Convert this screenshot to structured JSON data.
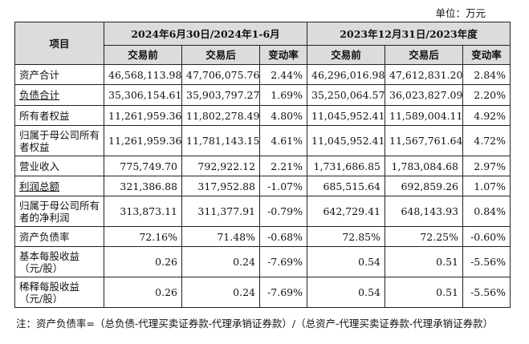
{
  "unit_label": "单位：万元",
  "header": {
    "item": "项目",
    "period1": "2024年6月30日/2024年1-6月",
    "period2": "2023年12月31日/2023年度",
    "sub": [
      "交易前",
      "交易后",
      "变动率",
      "交易前",
      "交易后",
      "变动率"
    ]
  },
  "rows": [
    {
      "name": "资产合计",
      "values": [
        "46,568,113.98",
        "47,706,075.76",
        "2.44%",
        "46,296,016.98",
        "47,612,831.20",
        "2.84%"
      ]
    },
    {
      "name": "负债合计",
      "values": [
        "35,306,154.61",
        "35,903,797.27",
        "1.69%",
        "35,250,064.57",
        "36,023,827.09",
        "2.20%"
      ]
    },
    {
      "name": "所有者权益",
      "values": [
        "11,261,959.36",
        "11,802,278.49",
        "4.80%",
        "11,045,952.41",
        "11,589,004.11",
        "4.92%"
      ]
    },
    {
      "name": "归属于母公司所有者权益",
      "values": [
        "11,261,959.36",
        "11,781,143.15",
        "4.61%",
        "11,045,952.41",
        "11,567,761.64",
        "4.72%"
      ]
    },
    {
      "name": "营业收入",
      "values": [
        "775,749.70",
        "792,922.12",
        "2.21%",
        "1,731,686.85",
        "1,783,084.68",
        "2.97%"
      ]
    },
    {
      "name": "利润总额",
      "values": [
        "321,386.88",
        "317,952.88",
        "-1.07%",
        "685,515.64",
        "692,859.26",
        "1.07%"
      ]
    },
    {
      "name": "归属于母公司所有者的净利润",
      "values": [
        "313,873.11",
        "311,377.91",
        "-0.79%",
        "642,729.41",
        "648,143.93",
        "0.84%"
      ]
    },
    {
      "name": "资产负债率",
      "values": [
        "72.16%",
        "71.48%",
        "-0.68%",
        "72.85%",
        "72.25%",
        "-0.60%"
      ]
    },
    {
      "name": "基本每股收益（元/股）",
      "values": [
        "0.26",
        "0.24",
        "-7.69%",
        "0.54",
        "0.51",
        "-5.56%"
      ]
    },
    {
      "name": "稀释每股收益（元/股）",
      "values": [
        "0.26",
        "0.24",
        "-7.69%",
        "0.54",
        "0.51",
        "-5.56%"
      ]
    }
  ],
  "note": "注：资产负债率=（总负债-代理买卖证券款-代理承销证券款）/（总资产-代理买卖证券款-代理承销证券款）"
}
